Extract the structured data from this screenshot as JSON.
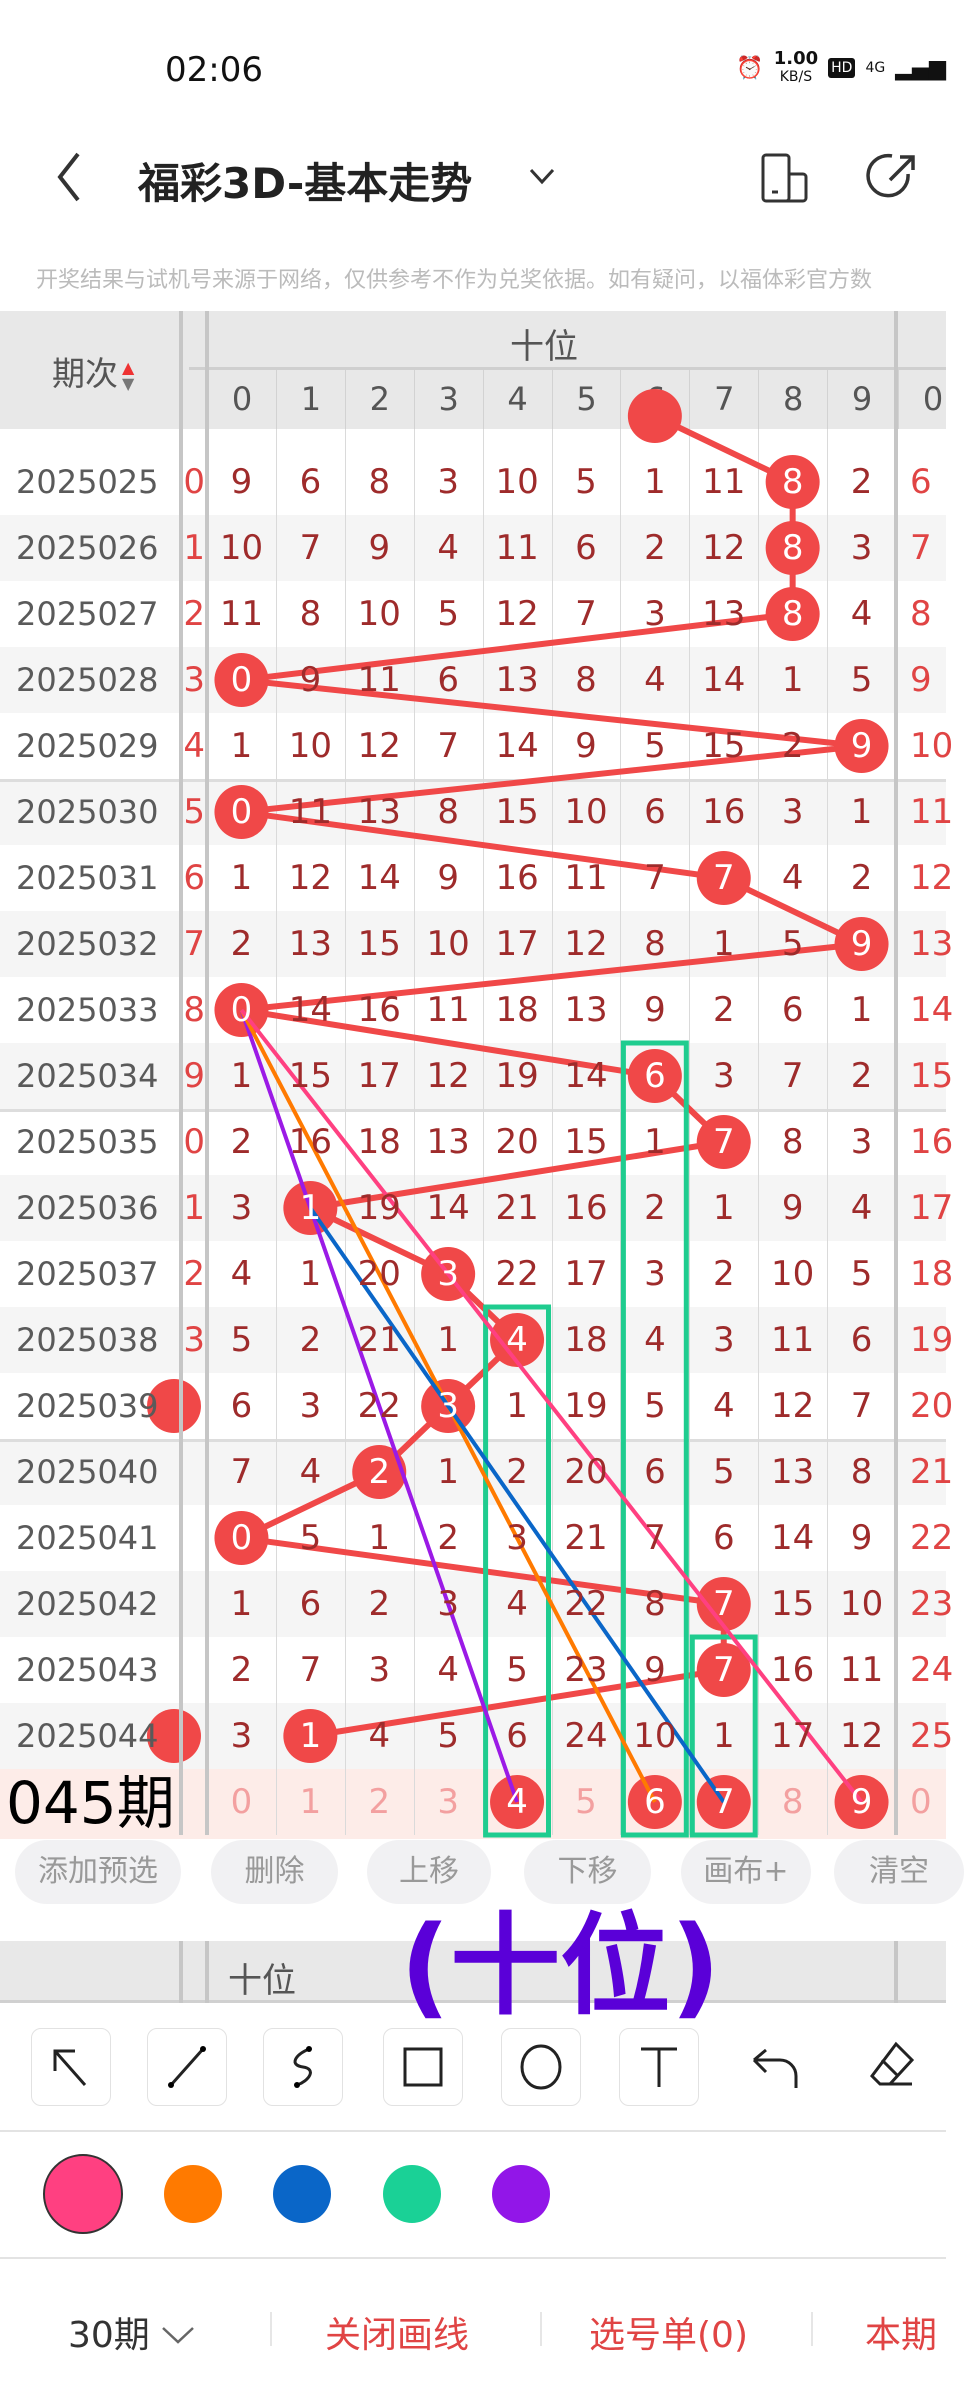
{
  "status_bar": {
    "time": "02:06",
    "net_speed": "1.00",
    "net_unit": "KB/S",
    "hd": "HD",
    "network": "4G"
  },
  "header": {
    "title": "福彩3D-基本走势"
  },
  "disclaimer": "开奖结果与试机号来源于网络，仅供参考不作为兑奖依据。如有疑问，以福体彩官方数",
  "table": {
    "period_header": "期次",
    "group_header": "十位",
    "digits": [
      "0",
      "1",
      "2",
      "3",
      "4",
      "5",
      "6",
      "7",
      "8",
      "9"
    ],
    "next_group_first_digit": "0",
    "prev_partial_winning": 6,
    "rows": [
      {
        "period": "2025025",
        "left": "0",
        "values": [
          9,
          6,
          8,
          3,
          10,
          5,
          1,
          11,
          8,
          2
        ],
        "win": 8,
        "right": "6"
      },
      {
        "period": "2025026",
        "left": "1",
        "values": [
          10,
          7,
          9,
          4,
          11,
          6,
          2,
          12,
          8,
          3
        ],
        "win": 8,
        "right": "7"
      },
      {
        "period": "2025027",
        "left": "2",
        "values": [
          11,
          8,
          10,
          5,
          12,
          7,
          3,
          13,
          8,
          4
        ],
        "win": 8,
        "right": "8"
      },
      {
        "period": "2025028",
        "left": "3",
        "values": [
          0,
          9,
          11,
          6,
          13,
          8,
          4,
          14,
          1,
          5
        ],
        "win": 0,
        "right": "9"
      },
      {
        "period": "2025029",
        "left": "4",
        "values": [
          1,
          10,
          12,
          7,
          14,
          9,
          5,
          15,
          2,
          9
        ],
        "win": 9,
        "right": "10"
      },
      {
        "period": "2025030",
        "left": "5",
        "values": [
          0,
          11,
          13,
          8,
          15,
          10,
          6,
          16,
          3,
          1
        ],
        "win": 0,
        "right": "11"
      },
      {
        "period": "2025031",
        "left": "6",
        "values": [
          1,
          12,
          14,
          9,
          16,
          11,
          7,
          7,
          4,
          2
        ],
        "win": 7,
        "right": "12"
      },
      {
        "period": "2025032",
        "left": "7",
        "values": [
          2,
          13,
          15,
          10,
          17,
          12,
          8,
          1,
          5,
          9
        ],
        "win": 9,
        "right": "13"
      },
      {
        "period": "2025033",
        "left": "8",
        "values": [
          0,
          14,
          16,
          11,
          18,
          13,
          9,
          2,
          6,
          1
        ],
        "win": 0,
        "right": "14"
      },
      {
        "period": "2025034",
        "left": "9",
        "values": [
          1,
          15,
          17,
          12,
          19,
          14,
          6,
          3,
          7,
          2
        ],
        "win": 6,
        "right": "15"
      },
      {
        "period": "2025035",
        "left": "0",
        "values": [
          2,
          16,
          18,
          13,
          20,
          15,
          1,
          7,
          8,
          3
        ],
        "win": 7,
        "right": "16"
      },
      {
        "period": "2025036",
        "left": "1",
        "values": [
          3,
          1,
          19,
          14,
          21,
          16,
          2,
          1,
          9,
          4
        ],
        "win": 1,
        "right": "17"
      },
      {
        "period": "2025037",
        "left": "2",
        "values": [
          4,
          1,
          20,
          3,
          22,
          17,
          3,
          2,
          10,
          5
        ],
        "win": 3,
        "right": "18"
      },
      {
        "period": "2025038",
        "left": "3",
        "values": [
          5,
          2,
          21,
          1,
          4,
          18,
          4,
          3,
          11,
          6
        ],
        "win": 4,
        "right": "19"
      },
      {
        "period": "2025039",
        "left": "",
        "left_ball": true,
        "values": [
          6,
          3,
          22,
          3,
          1,
          19,
          5,
          4,
          12,
          7
        ],
        "win": 3,
        "right": "20"
      },
      {
        "period": "2025040",
        "left": "",
        "values": [
          7,
          4,
          2,
          1,
          2,
          20,
          6,
          5,
          13,
          8
        ],
        "win": 2,
        "right": "21"
      },
      {
        "period": "2025041",
        "left": "",
        "values": [
          0,
          5,
          1,
          2,
          3,
          21,
          7,
          6,
          14,
          9
        ],
        "win": 0,
        "right": "22"
      },
      {
        "period": "2025042",
        "left": "",
        "values": [
          1,
          6,
          2,
          3,
          4,
          22,
          8,
          7,
          15,
          10
        ],
        "win": 7,
        "right": "23"
      },
      {
        "period": "2025043",
        "left": "",
        "values": [
          2,
          7,
          3,
          4,
          5,
          23,
          9,
          7,
          16,
          11
        ],
        "win": 7,
        "right": "24"
      },
      {
        "period": "2025044",
        "left": "",
        "left_ball": true,
        "values": [
          3,
          1,
          4,
          5,
          6,
          24,
          10,
          1,
          17,
          12
        ],
        "win": 1,
        "right": "25"
      }
    ],
    "prediction_row": {
      "label": "045期",
      "values": [
        "0",
        "1",
        "2",
        "3",
        "4",
        "5",
        "6",
        "7",
        "8",
        "9"
      ],
      "selected": [
        4,
        6,
        7,
        9
      ],
      "right": "0"
    }
  },
  "drawings": {
    "annotation_text": "(十位)",
    "annotation_color": "#5a00d8",
    "lines": [
      {
        "color": "#9b1ae6",
        "from": {
          "period": "2025033",
          "digit": 0
        },
        "to": {
          "period": "045",
          "digit": 4
        }
      },
      {
        "color": "#ff7a00",
        "from": {
          "period": "2025033",
          "digit": 0
        },
        "to": {
          "period": "045",
          "digit": 6
        }
      },
      {
        "color": "#0a66c8",
        "from": {
          "period": "2025036",
          "digit": 1
        },
        "to": {
          "period": "045",
          "digit": 7
        }
      },
      {
        "color": "#ff4081",
        "from": {
          "period": "2025033",
          "digit": 0
        },
        "to": {
          "period": "045",
          "digit": 9
        }
      }
    ],
    "boxes": [
      {
        "color": "#1fcc8f",
        "digit": 4,
        "from": "2025038",
        "to": "045"
      },
      {
        "color": "#1fcc8f",
        "digit": 6,
        "from": "2025034",
        "to": "045"
      },
      {
        "color": "#1fcc8f",
        "digit": 7,
        "from": "2025043",
        "to": "045"
      }
    ]
  },
  "actions": [
    "添加预选",
    "删除",
    "上移",
    "下移",
    "画布+",
    "清空"
  ],
  "tools": [
    "arrow",
    "line",
    "curve",
    "rectangle",
    "circle",
    "text",
    "undo",
    "eraser"
  ],
  "palette": {
    "selected": "#ff4081",
    "colors": [
      "#ff4081",
      "#ff7a00",
      "#0a66c8",
      "#1ad196",
      "#9216e8"
    ]
  },
  "bottom_bar": {
    "periods": "30期",
    "close_drawing": "关闭画线",
    "selection_list": "选号单(0)",
    "current": "本期"
  },
  "colors": {
    "ball": "#f04848",
    "omission_text": "#9e2b2b",
    "accent": "#e04444"
  }
}
